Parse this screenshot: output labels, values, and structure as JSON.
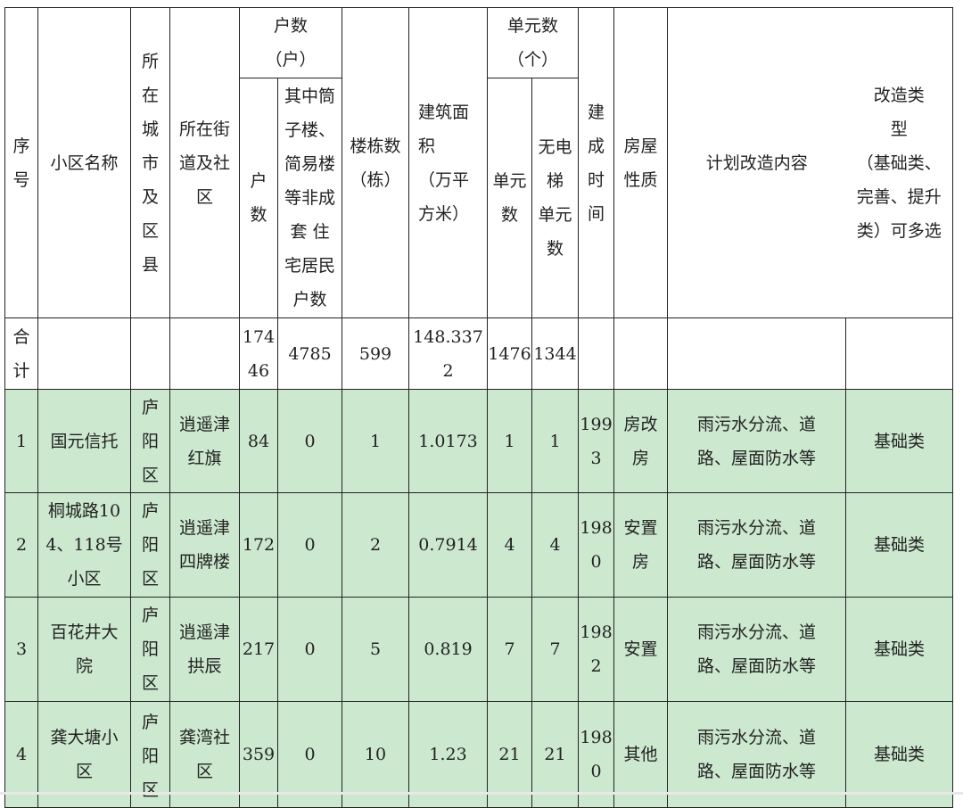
{
  "header": {
    "seq": "序\n号",
    "name": "小区名称",
    "city": "所\n在\n城\n市\n及\n区\n县",
    "street": "所在街\n道及社\n区",
    "households_group": "户数\n（户）",
    "households": "户\n数",
    "tube_households": "其中筒\n子楼、\n简易楼\n等非成\n套 住\n宅居民\n户数",
    "buildings": "楼栋数\n（栋）",
    "area": "建筑面\n积\n（万平\n方米）",
    "units_group": "单元数\n（个）",
    "units": "单元\n数",
    "no_elevator_units": "无电\n梯\n单元\n数",
    "built_year": "建\n成\n时\n间",
    "house_type": "房屋\n性质",
    "plan": "计划改造内容",
    "category": "改造类\n型\n（基础类、\n完善、提升\n类）可多选"
  },
  "total": {
    "label": "合\n计",
    "households": "174\n46",
    "tube_households": "4785",
    "buildings": "599",
    "area": "148.337\n2",
    "units": "1476",
    "no_elevator_units": "1344"
  },
  "rows": [
    {
      "seq": "1",
      "name": "国元信托",
      "city": "庐\n阳\n区",
      "street": "逍遥津\n红旗",
      "households": "84",
      "tube": "0",
      "buildings": "1",
      "area": "1.0173",
      "units": "1",
      "no_elev": "1",
      "year": "199\n3",
      "type": "房改\n房",
      "plan": "雨污水分流、道\n路、屋面防水等",
      "category": "基础类"
    },
    {
      "seq": "2",
      "name": "桐城路10\n4、118号\n小区",
      "city": "庐\n阳\n区",
      "street": "逍遥津\n四牌楼",
      "households": "172",
      "tube": "0",
      "buildings": "2",
      "area": "0.7914",
      "units": "4",
      "no_elev": "4",
      "year": "198\n0",
      "type": "安置\n房",
      "plan": "雨污水分流、道\n路、屋面防水等",
      "category": "基础类"
    },
    {
      "seq": "3",
      "name": "百花井大\n院",
      "city": "庐\n阳\n区",
      "street": "逍遥津\n拱辰",
      "households": "217",
      "tube": "0",
      "buildings": "5",
      "area": "0.819",
      "units": "7",
      "no_elev": "7",
      "year": "198\n2",
      "type": "安置",
      "plan": "雨污水分流、道\n路、屋面防水等",
      "category": "基础类"
    },
    {
      "seq": "4",
      "name": "龚大塘小\n区",
      "city": "庐\n阳\n区",
      "street": "龚湾社\n区",
      "households": "359",
      "tube": "0",
      "buildings": "10",
      "area": "1.23",
      "units": "21",
      "no_elev": "21",
      "year": "198\n0",
      "type": "其他",
      "plan": "雨污水分流、道\n路、屋面防水等",
      "category": "基础类"
    }
  ],
  "colors": {
    "row_highlight": "#cce8cf",
    "border": "#222222"
  }
}
